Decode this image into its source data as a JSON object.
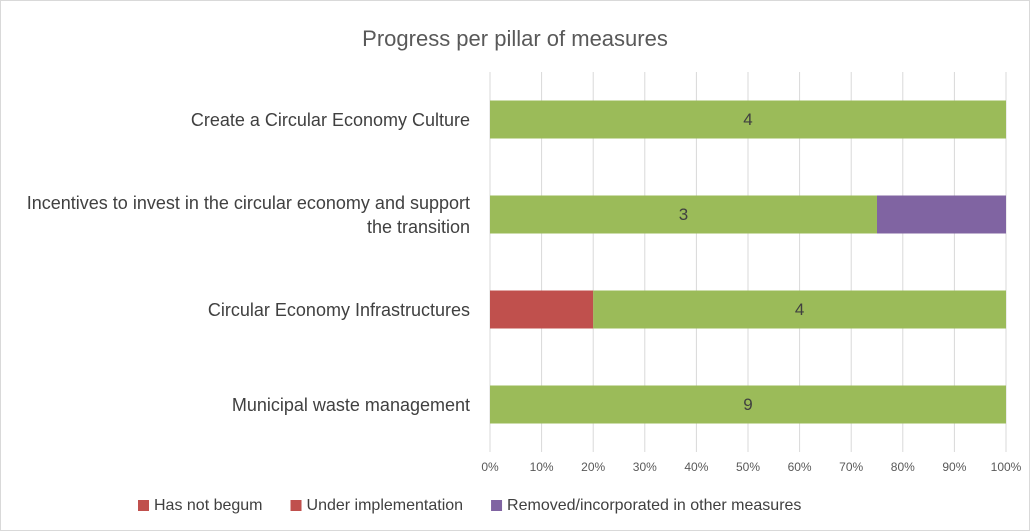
{
  "chart_data": {
    "type": "bar",
    "orientation": "horizontal",
    "stacked_percent": true,
    "title": "Progress per pillar of measures",
    "categories": [
      "Create a Circular Economy Culture",
      "Incentives to invest in the circular economy and support the transition",
      "Circular Economy Infrastructures",
      "Municipal waste management"
    ],
    "series": [
      {
        "name": "Has not begum",
        "color": "#c0504d",
        "values": [
          0,
          0,
          0,
          0
        ]
      },
      {
        "name": "Under implementation",
        "color": "#c0504d",
        "values": [
          0,
          0,
          1,
          0
        ]
      },
      {
        "color": "#9bbb59",
        "values": [
          4,
          3,
          4,
          9
        ]
      },
      {
        "name": "Removed/incorporated in other measures",
        "color": "#8064a2",
        "values": [
          0,
          1,
          0,
          0
        ]
      }
    ],
    "xlim": [
      0,
      100
    ],
    "xticks": [
      {
        "value": 0,
        "label": "0%"
      },
      {
        "value": 10,
        "label": "10%"
      },
      {
        "value": 20,
        "label": "20%"
      },
      {
        "value": 30,
        "label": "30%"
      },
      {
        "value": 40,
        "label": "40%"
      },
      {
        "value": 50,
        "label": "50%"
      },
      {
        "value": 60,
        "label": "60%"
      },
      {
        "value": 70,
        "label": "70%"
      },
      {
        "value": 80,
        "label": "80%"
      },
      {
        "value": 90,
        "label": "90%"
      },
      {
        "value": 100,
        "label": "100%"
      }
    ],
    "grid": true,
    "legend": "bottom"
  }
}
